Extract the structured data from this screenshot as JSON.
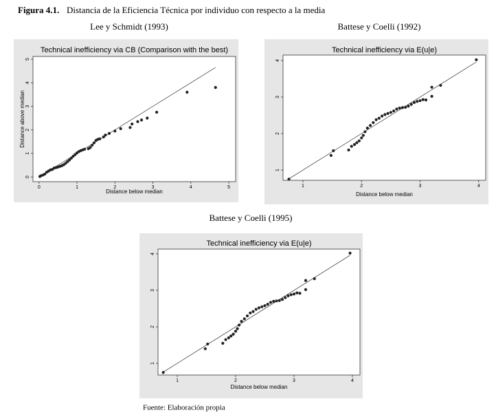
{
  "figure_label": "Figura 4.1.",
  "figure_caption": "Distancia de la Eficiencia Técnica por individuo con respecto a la media",
  "source": "Fuente: Elaboración propia",
  "chart_data": [
    {
      "type": "scatter",
      "heading": "Lee y Schmidt (1993)",
      "title": "Technical inefficiency via CB (Comparison with the best)",
      "xlabel": "Distance below median",
      "ylabel": "Distance above median",
      "diagonal": true,
      "xlim": [
        -0.16,
        5.18
      ],
      "ylim": [
        -0.2,
        5.12
      ],
      "xticks": [
        0,
        1,
        2,
        3,
        4,
        5
      ],
      "yticks": [
        0,
        1,
        2,
        3,
        4,
        5
      ],
      "color": "#222222",
      "x": [
        0.02,
        0.05,
        0.1,
        0.15,
        0.2,
        0.25,
        0.3,
        0.35,
        0.4,
        0.45,
        0.5,
        0.55,
        0.6,
        0.65,
        0.7,
        0.75,
        0.8,
        0.85,
        0.9,
        0.95,
        1.0,
        1.05,
        1.1,
        1.15,
        1.2,
        1.3,
        1.35,
        1.4,
        1.45,
        1.5,
        1.55,
        1.6,
        1.7,
        1.75,
        1.85,
        2.0,
        2.15,
        2.4,
        2.45,
        2.6,
        2.7,
        2.85,
        3.1,
        3.9,
        4.65
      ],
      "y": [
        0.02,
        0.05,
        0.08,
        0.12,
        0.2,
        0.25,
        0.3,
        0.32,
        0.38,
        0.4,
        0.42,
        0.45,
        0.48,
        0.52,
        0.58,
        0.65,
        0.72,
        0.8,
        0.88,
        0.95,
        1.02,
        1.08,
        1.12,
        1.15,
        1.18,
        1.2,
        1.25,
        1.35,
        1.45,
        1.55,
        1.6,
        1.62,
        1.7,
        1.78,
        1.85,
        1.95,
        2.05,
        2.1,
        2.25,
        2.35,
        2.42,
        2.5,
        2.75,
        3.6,
        3.8
      ]
    },
    {
      "type": "scatter",
      "heading": "Battese y Coelli (1992)",
      "title": "Technical inefficiency via E(u|e)",
      "xlabel": "Distance below median",
      "diagonal": true,
      "xlim": [
        0.66,
        4.12
      ],
      "ylim": [
        0.72,
        4.15
      ],
      "xticks": [
        1,
        2,
        3,
        4
      ],
      "yticks": [
        1,
        2,
        3,
        4
      ],
      "color": "#222222",
      "x": [
        0.76,
        1.48,
        1.52,
        1.78,
        1.83,
        1.88,
        1.92,
        1.96,
        2.0,
        2.03,
        2.06,
        2.1,
        2.15,
        2.2,
        2.25,
        2.3,
        2.35,
        2.4,
        2.45,
        2.5,
        2.55,
        2.6,
        2.65,
        2.7,
        2.75,
        2.8,
        2.85,
        2.9,
        2.95,
        3.0,
        3.05,
        3.1,
        3.2,
        3.2,
        3.35,
        3.96
      ],
      "y": [
        0.75,
        1.4,
        1.53,
        1.55,
        1.65,
        1.7,
        1.75,
        1.8,
        1.88,
        1.95,
        2.05,
        2.15,
        2.22,
        2.3,
        2.38,
        2.42,
        2.48,
        2.52,
        2.55,
        2.58,
        2.62,
        2.67,
        2.7,
        2.71,
        2.72,
        2.75,
        2.8,
        2.85,
        2.88,
        2.9,
        2.93,
        2.92,
        3.02,
        3.27,
        3.32,
        4.02
      ]
    },
    {
      "type": "scatter",
      "heading": "Battese y Coelli (1995)",
      "title": "Technical inefficiency via E(u|e)",
      "xlabel": "Distance below median",
      "diagonal": true,
      "xlim": [
        0.67,
        4.13
      ],
      "ylim": [
        0.68,
        4.13
      ],
      "xticks": [
        1,
        2,
        3,
        4
      ],
      "yticks": [
        1,
        2,
        3,
        4
      ],
      "color": "#222222",
      "x": [
        0.76,
        1.48,
        1.52,
        1.78,
        1.83,
        1.88,
        1.92,
        1.96,
        2.0,
        2.03,
        2.06,
        2.1,
        2.15,
        2.2,
        2.25,
        2.3,
        2.35,
        2.4,
        2.45,
        2.5,
        2.55,
        2.6,
        2.65,
        2.7,
        2.75,
        2.8,
        2.85,
        2.9,
        2.95,
        3.0,
        3.05,
        3.1,
        3.2,
        3.2,
        3.35,
        3.96
      ],
      "y": [
        0.75,
        1.4,
        1.53,
        1.55,
        1.65,
        1.7,
        1.75,
        1.8,
        1.88,
        1.95,
        2.05,
        2.15,
        2.22,
        2.3,
        2.38,
        2.42,
        2.48,
        2.52,
        2.55,
        2.58,
        2.62,
        2.67,
        2.7,
        2.71,
        2.72,
        2.75,
        2.8,
        2.85,
        2.88,
        2.9,
        2.93,
        2.92,
        3.02,
        3.27,
        3.32,
        4.02
      ]
    }
  ]
}
